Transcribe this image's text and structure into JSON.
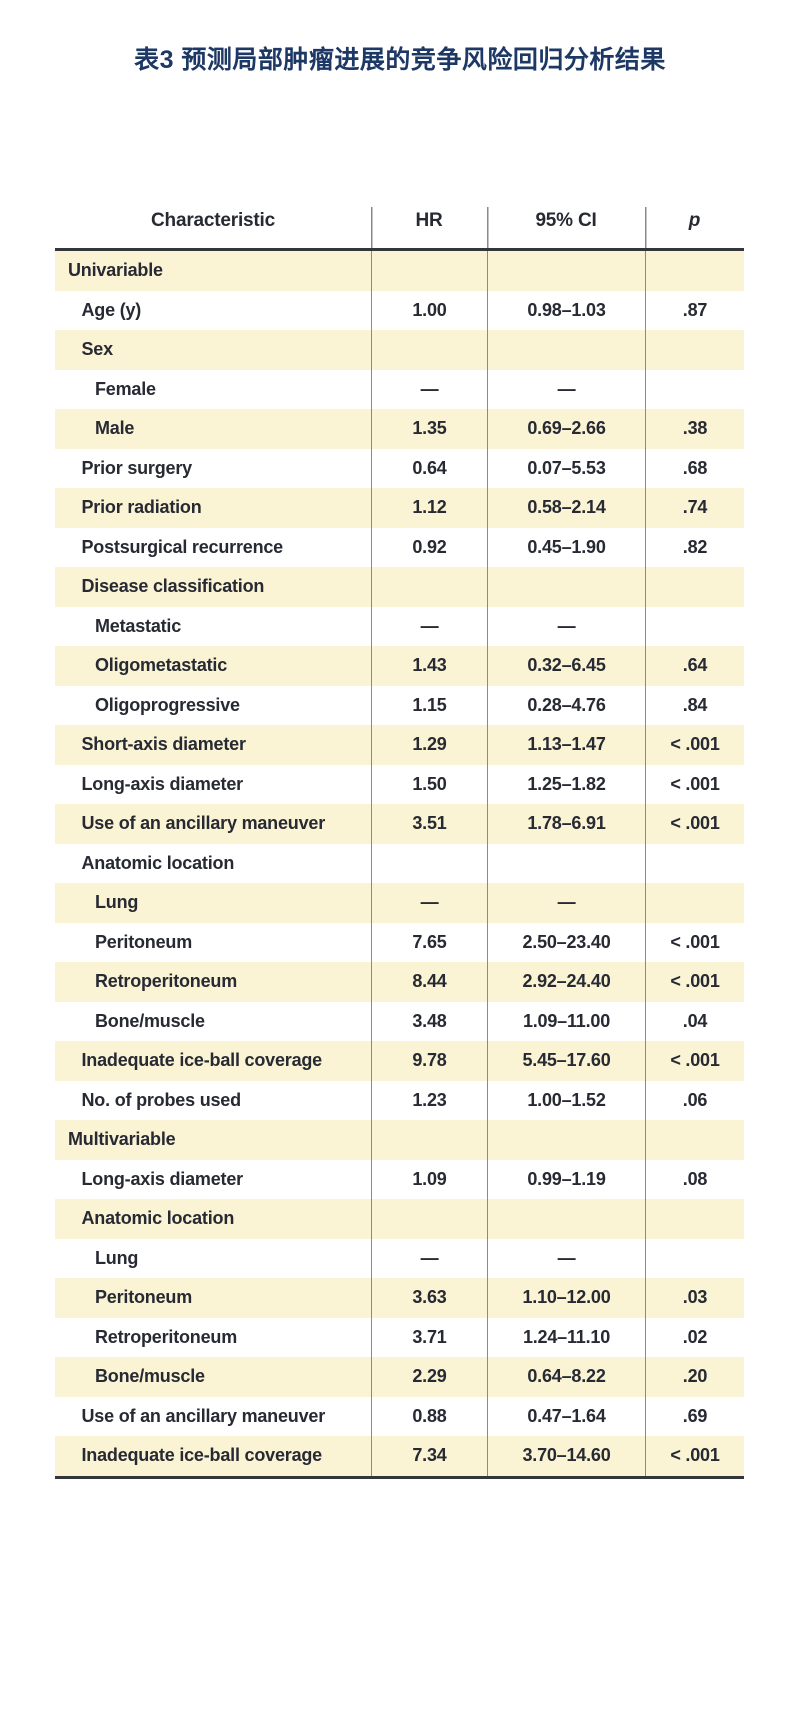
{
  "page": {
    "title": "表3 预测局部肿瘤进展的竞争风险回归分析结果"
  },
  "theme": {
    "title_color": "#1e3866",
    "text_color": "#272a33",
    "stripe_color": "#faf3d4",
    "divider_color": "#8a8a8a",
    "rule_color": "#33363c"
  },
  "table": {
    "columns": {
      "characteristic": "Characteristic",
      "hr": "HR",
      "ci": "95% CI",
      "p": "p"
    },
    "empty_marker": "—",
    "rows": [
      {
        "label": "Univariable",
        "indent": 0,
        "hr": "",
        "ci": "",
        "p": ""
      },
      {
        "label": "Age (y)",
        "indent": 1,
        "hr": "1.00",
        "ci": "0.98–1.03",
        "p": ".87"
      },
      {
        "label": "Sex",
        "indent": 1,
        "hr": "",
        "ci": "",
        "p": ""
      },
      {
        "label": "Female",
        "indent": 2,
        "hr": "—",
        "ci": "—",
        "p": ""
      },
      {
        "label": "Male",
        "indent": 2,
        "hr": "1.35",
        "ci": "0.69–2.66",
        "p": ".38"
      },
      {
        "label": "Prior surgery",
        "indent": 1,
        "hr": "0.64",
        "ci": "0.07–5.53",
        "p": ".68"
      },
      {
        "label": "Prior radiation",
        "indent": 1,
        "hr": "1.12",
        "ci": "0.58–2.14",
        "p": ".74"
      },
      {
        "label": "Postsurgical recurrence",
        "indent": 1,
        "hr": "0.92",
        "ci": "0.45–1.90",
        "p": ".82"
      },
      {
        "label": "Disease classification",
        "indent": 1,
        "hr": "",
        "ci": "",
        "p": ""
      },
      {
        "label": "Metastatic",
        "indent": 2,
        "hr": "—",
        "ci": "—",
        "p": ""
      },
      {
        "label": "Oligometastatic",
        "indent": 2,
        "hr": "1.43",
        "ci": "0.32–6.45",
        "p": ".64"
      },
      {
        "label": "Oligoprogressive",
        "indent": 2,
        "hr": "1.15",
        "ci": "0.28–4.76",
        "p": ".84"
      },
      {
        "label": "Short-axis diameter",
        "indent": 1,
        "hr": "1.29",
        "ci": "1.13–1.47",
        "p": "< .001"
      },
      {
        "label": "Long-axis diameter",
        "indent": 1,
        "hr": "1.50",
        "ci": "1.25–1.82",
        "p": "< .001"
      },
      {
        "label": "Use of an ancillary maneuver",
        "indent": 1,
        "hr": "3.51",
        "ci": "1.78–6.91",
        "p": "< .001"
      },
      {
        "label": "Anatomic location",
        "indent": 1,
        "hr": "",
        "ci": "",
        "p": ""
      },
      {
        "label": "Lung",
        "indent": 2,
        "hr": "—",
        "ci": "—",
        "p": ""
      },
      {
        "label": "Peritoneum",
        "indent": 2,
        "hr": "7.65",
        "ci": "2.50–23.40",
        "p": "< .001"
      },
      {
        "label": "Retroperitoneum",
        "indent": 2,
        "hr": "8.44",
        "ci": "2.92–24.40",
        "p": "< .001"
      },
      {
        "label": "Bone/muscle",
        "indent": 2,
        "hr": "3.48",
        "ci": "1.09–11.00",
        "p": ".04"
      },
      {
        "label": "Inadequate ice-ball coverage",
        "indent": 1,
        "hr": "9.78",
        "ci": "5.45–17.60",
        "p": "< .001"
      },
      {
        "label": "No. of probes used",
        "indent": 1,
        "hr": "1.23",
        "ci": "1.00–1.52",
        "p": ".06"
      },
      {
        "label": "Multivariable",
        "indent": 0,
        "hr": "",
        "ci": "",
        "p": ""
      },
      {
        "label": "Long-axis diameter",
        "indent": 1,
        "hr": "1.09",
        "ci": "0.99–1.19",
        "p": ".08"
      },
      {
        "label": "Anatomic location",
        "indent": 1,
        "hr": "",
        "ci": "",
        "p": ""
      },
      {
        "label": "Lung",
        "indent": 2,
        "hr": "—",
        "ci": "—",
        "p": ""
      },
      {
        "label": "Peritoneum",
        "indent": 2,
        "hr": "3.63",
        "ci": "1.10–12.00",
        "p": ".03"
      },
      {
        "label": "Retroperitoneum",
        "indent": 2,
        "hr": "3.71",
        "ci": "1.24–11.10",
        "p": ".02"
      },
      {
        "label": "Bone/muscle",
        "indent": 2,
        "hr": "2.29",
        "ci": "0.64–8.22",
        "p": ".20"
      },
      {
        "label": "Use of an ancillary maneuver",
        "indent": 1,
        "hr": "0.88",
        "ci": "0.47–1.64",
        "p": ".69"
      },
      {
        "label": "Inadequate ice-ball coverage",
        "indent": 1,
        "hr": "7.34",
        "ci": "3.70–14.60",
        "p": "< .001"
      }
    ]
  }
}
